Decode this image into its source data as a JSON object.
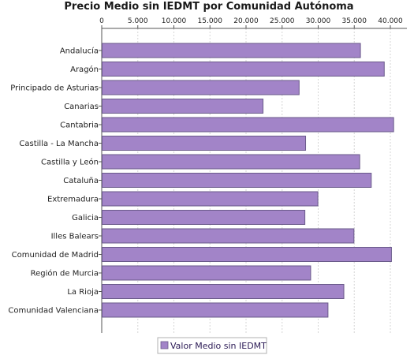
{
  "chart_data": {
    "type": "bar",
    "orientation": "horizontal",
    "title": "Precio Medio sin IEDMT por Comunidad Autónoma",
    "xlabel": "",
    "ylabel": "",
    "xlim": [
      0,
      40000
    ],
    "ticks": [
      0,
      5000,
      10000,
      15000,
      20000,
      25000,
      30000,
      35000,
      40000
    ],
    "tick_labels": [
      "0",
      "5.000",
      "10.000",
      "15.000",
      "20.000",
      "25.000",
      "30.000",
      "35.000",
      "40.000"
    ],
    "tick_position": "top",
    "grid": true,
    "legend_position": "bottom-left",
    "series": [
      {
        "name": "Valor Medio sin IEDMT",
        "color": "#a284c8",
        "border_color": "#6a5a8a",
        "values": [
          35800,
          39100,
          27300,
          22300,
          40400,
          28200,
          35700,
          37300,
          29900,
          28100,
          34900,
          40100,
          28900,
          33500,
          31300
        ]
      }
    ],
    "categories": [
      "Andalucía",
      "Aragón",
      "Principado de Asturias",
      "Canarias",
      "Cantabria",
      "Castilla - La Mancha",
      "Castilla y León",
      "Cataluña",
      "Extremadura",
      "Galicia",
      "Illes Balears",
      "Comunidad de Madrid",
      "Región de Murcia",
      "La Rioja",
      "Comunidad Valenciana"
    ]
  }
}
